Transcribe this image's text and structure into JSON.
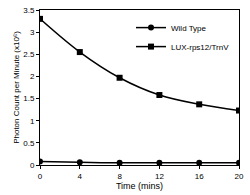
{
  "chart_data": {
    "type": "line",
    "x_label": "Time (mins)",
    "y_label": "Photon Count per Minute (x10⁶)",
    "x": [
      0,
      4,
      8,
      12,
      16,
      20
    ],
    "series": [
      {
        "name": "Wild Type",
        "color": "#000000",
        "marker": "circle",
        "line_style": "solid",
        "values": [
          0.08,
          0.06,
          0.05,
          0.05,
          0.05,
          0.05
        ]
      },
      {
        "name": "LUX-rps12/TrnV",
        "color": "#000000",
        "marker": "square",
        "line_style": "solid",
        "values": [
          3.3,
          2.55,
          1.97,
          1.58,
          1.37,
          1.23
        ]
      }
    ],
    "xlim": [
      0,
      20
    ],
    "xticks": [
      0,
      4,
      8,
      12,
      16,
      20
    ],
    "ylim": [
      0,
      3.5
    ],
    "yticks": [
      0,
      0.5,
      1,
      1.5,
      2,
      2.5,
      3,
      3.5
    ],
    "grid": false,
    "legend": "top right"
  }
}
